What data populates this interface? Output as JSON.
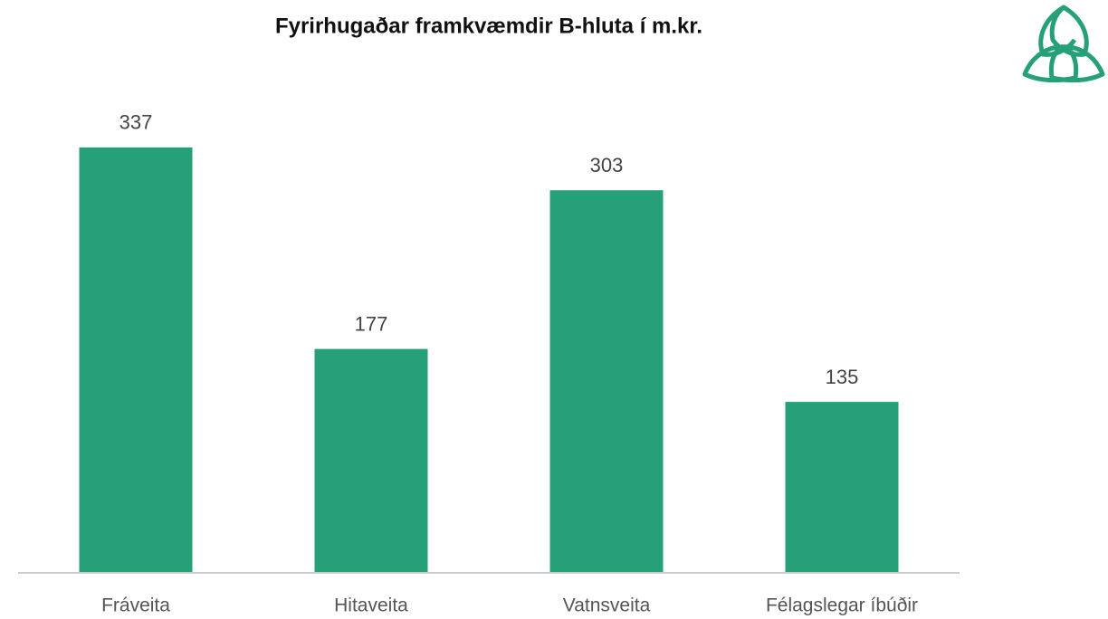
{
  "chart_data": {
    "type": "bar",
    "title": "Fyrirhugaðar framkvæmdir B-hluta í m.kr.",
    "categories": [
      "Fráveita",
      "Hitaveita",
      "Vatnsveita",
      "Félagslegar íbúðir"
    ],
    "values": [
      337,
      177,
      303,
      135
    ],
    "color": "#25a078"
  }
}
